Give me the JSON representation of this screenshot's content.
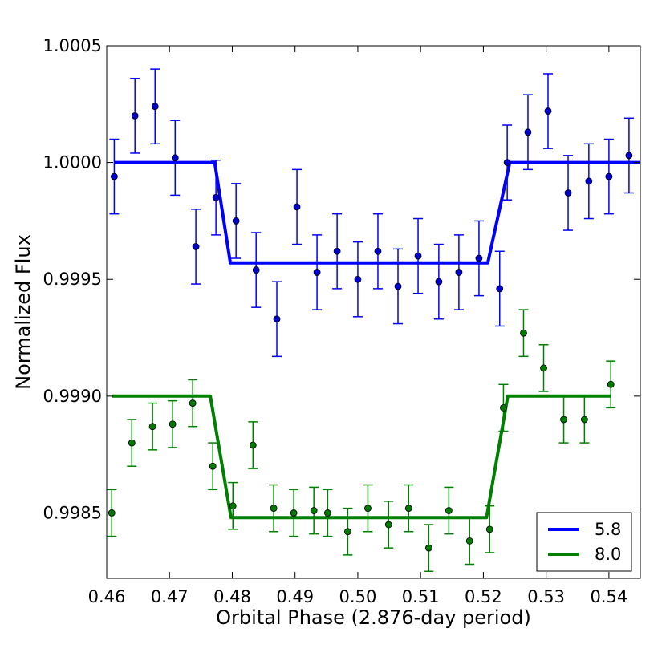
{
  "chart_data": {
    "type": "scatter",
    "title": "",
    "xlabel": "Orbital Phase (2.876-day period)",
    "ylabel": "Normalized Flux",
    "xlim": [
      0.46,
      0.545
    ],
    "ylim": [
      0.99822,
      1.0005
    ],
    "x_ticks": [
      0.46,
      0.47,
      0.48,
      0.49,
      0.5,
      0.51,
      0.52,
      0.53,
      0.54
    ],
    "x_tick_labels": [
      "0.46",
      "0.47",
      "0.48",
      "0.49",
      "0.50",
      "0.51",
      "0.52",
      "0.53",
      "0.54"
    ],
    "y_ticks": [
      0.9985,
      0.999,
      0.9995,
      1.0,
      1.0005
    ],
    "y_tick_labels": [
      "0.9985",
      "0.9990",
      "0.9995",
      "1.0000",
      "1.0005"
    ],
    "grid": false,
    "legend_position": "bottom-right",
    "series": [
      {
        "name": "5.8",
        "color": "#0000ff",
        "marker_color": "#0000cc",
        "points": [
          {
            "x": 0.4612,
            "y": 0.99994,
            "err": 0.00016
          },
          {
            "x": 0.4645,
            "y": 1.0002,
            "err": 0.00016
          },
          {
            "x": 0.4677,
            "y": 1.00024,
            "err": 0.00016
          },
          {
            "x": 0.4709,
            "y": 1.00002,
            "err": 0.00016
          },
          {
            "x": 0.4742,
            "y": 0.99964,
            "err": 0.00016
          },
          {
            "x": 0.4774,
            "y": 0.99985,
            "err": 0.00016
          },
          {
            "x": 0.4806,
            "y": 0.99975,
            "err": 0.00016
          },
          {
            "x": 0.4838,
            "y": 0.99954,
            "err": 0.00016
          },
          {
            "x": 0.4871,
            "y": 0.99933,
            "err": 0.00016
          },
          {
            "x": 0.4903,
            "y": 0.99981,
            "err": 0.00016
          },
          {
            "x": 0.4935,
            "y": 0.99953,
            "err": 0.00016
          },
          {
            "x": 0.4967,
            "y": 0.99962,
            "err": 0.00016
          },
          {
            "x": 0.5,
            "y": 0.9995,
            "err": 0.00016
          },
          {
            "x": 0.5032,
            "y": 0.99962,
            "err": 0.00016
          },
          {
            "x": 0.5064,
            "y": 0.99947,
            "err": 0.00016
          },
          {
            "x": 0.5096,
            "y": 0.9996,
            "err": 0.00016
          },
          {
            "x": 0.5129,
            "y": 0.99949,
            "err": 0.00016
          },
          {
            "x": 0.5161,
            "y": 0.99953,
            "err": 0.00016
          },
          {
            "x": 0.5193,
            "y": 0.99959,
            "err": 0.00016
          },
          {
            "x": 0.5226,
            "y": 0.99946,
            "err": 0.00016
          },
          {
            "x": 0.5238,
            "y": 1.0,
            "err": 0.00016
          },
          {
            "x": 0.5271,
            "y": 1.00013,
            "err": 0.00016
          },
          {
            "x": 0.5303,
            "y": 1.00022,
            "err": 0.00016
          },
          {
            "x": 0.5335,
            "y": 0.99987,
            "err": 0.00016
          },
          {
            "x": 0.5368,
            "y": 0.99992,
            "err": 0.00016
          },
          {
            "x": 0.54,
            "y": 0.99994,
            "err": 0.00016
          },
          {
            "x": 0.5432,
            "y": 1.00003,
            "err": 0.00016
          }
        ],
        "model": {
          "x": [
            0.4612,
            0.4772,
            0.4797,
            0.5207,
            0.5242,
            0.545
          ],
          "y": [
            1.0,
            1.0,
            0.99957,
            0.99957,
            1.0,
            1.0
          ]
        }
      },
      {
        "name": "8.0",
        "color": "#008000",
        "marker_color": "#007a00",
        "points": [
          {
            "x": 0.4608,
            "y": 0.9985,
            "err": 0.0001
          },
          {
            "x": 0.464,
            "y": 0.9988,
            "err": 0.0001
          },
          {
            "x": 0.4673,
            "y": 0.99887,
            "err": 0.0001
          },
          {
            "x": 0.4705,
            "y": 0.99888,
            "err": 0.0001
          },
          {
            "x": 0.4737,
            "y": 0.99897,
            "err": 0.0001
          },
          {
            "x": 0.4769,
            "y": 0.9987,
            "err": 0.0001
          },
          {
            "x": 0.4801,
            "y": 0.99853,
            "err": 0.0001
          },
          {
            "x": 0.4833,
            "y": 0.99879,
            "err": 0.0001
          },
          {
            "x": 0.4866,
            "y": 0.99852,
            "err": 0.0001
          },
          {
            "x": 0.4898,
            "y": 0.9985,
            "err": 0.0001
          },
          {
            "x": 0.493,
            "y": 0.99851,
            "err": 0.0001
          },
          {
            "x": 0.4952,
            "y": 0.9985,
            "err": 0.0001
          },
          {
            "x": 0.4984,
            "y": 0.99842,
            "err": 0.0001
          },
          {
            "x": 0.5016,
            "y": 0.99852,
            "err": 0.0001
          },
          {
            "x": 0.5049,
            "y": 0.99845,
            "err": 0.0001
          },
          {
            "x": 0.5081,
            "y": 0.99852,
            "err": 0.0001
          },
          {
            "x": 0.5113,
            "y": 0.99835,
            "err": 0.0001
          },
          {
            "x": 0.5145,
            "y": 0.99851,
            "err": 0.0001
          },
          {
            "x": 0.5178,
            "y": 0.99838,
            "err": 0.0001
          },
          {
            "x": 0.521,
            "y": 0.99843,
            "err": 0.0001
          },
          {
            "x": 0.5232,
            "y": 0.99895,
            "err": 0.0001
          },
          {
            "x": 0.5264,
            "y": 0.99927,
            "err": 0.0001
          },
          {
            "x": 0.5296,
            "y": 0.99912,
            "err": 0.0001
          },
          {
            "x": 0.5328,
            "y": 0.9989,
            "err": 0.0001
          },
          {
            "x": 0.5361,
            "y": 0.9989,
            "err": 0.0001
          },
          {
            "x": 0.5403,
            "y": 0.99905,
            "err": 0.0001
          }
        ],
        "model": {
          "x": [
            0.4608,
            0.4765,
            0.4798,
            0.5205,
            0.5239,
            0.5403
          ],
          "y": [
            0.999,
            0.999,
            0.99848,
            0.99848,
            0.999,
            0.999
          ]
        }
      }
    ]
  }
}
